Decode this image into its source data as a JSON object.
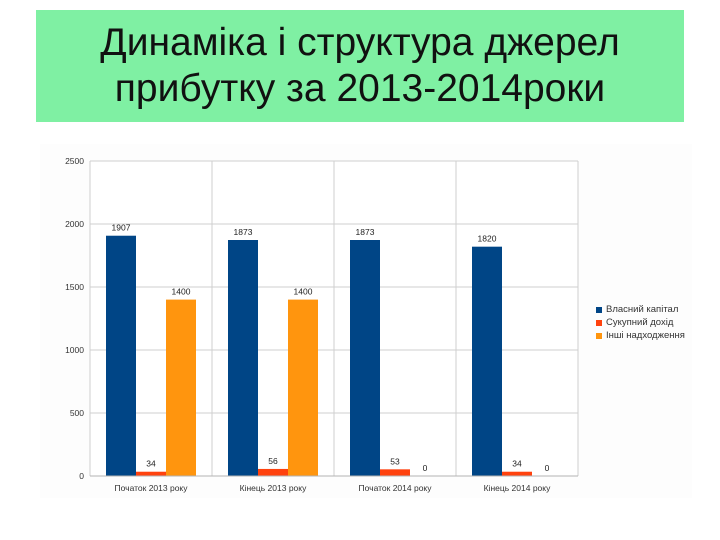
{
  "slide": {
    "title_line1": "Динаміка і структура джерел",
    "title_line2": "прибутку за 2013-2014роки",
    "title_bg": "#7ff0a3"
  },
  "chart_data": {
    "type": "bar",
    "categories": [
      "Початок 2013 року",
      "Кінець 2013 року",
      "Початок 2014 року",
      "Кінець 2014 року"
    ],
    "series": [
      {
        "name": "Власний капітал",
        "color": "#004586",
        "values": [
          1907,
          1873,
          1873,
          1820
        ]
      },
      {
        "name": "Сукупний дохід",
        "color": "#ff420e",
        "values": [
          34,
          56,
          53,
          34
        ]
      },
      {
        "name": "Інші надходження",
        "color": "#ff950e",
        "values": [
          1400,
          1400,
          0,
          0
        ]
      }
    ],
    "data_labels": true,
    "ylim": [
      0,
      2500
    ],
    "yticks": [
      0,
      500,
      1000,
      1500,
      2000,
      2500
    ],
    "grid": true,
    "legend_position": "right",
    "title": "",
    "xlabel": "",
    "ylabel": ""
  }
}
